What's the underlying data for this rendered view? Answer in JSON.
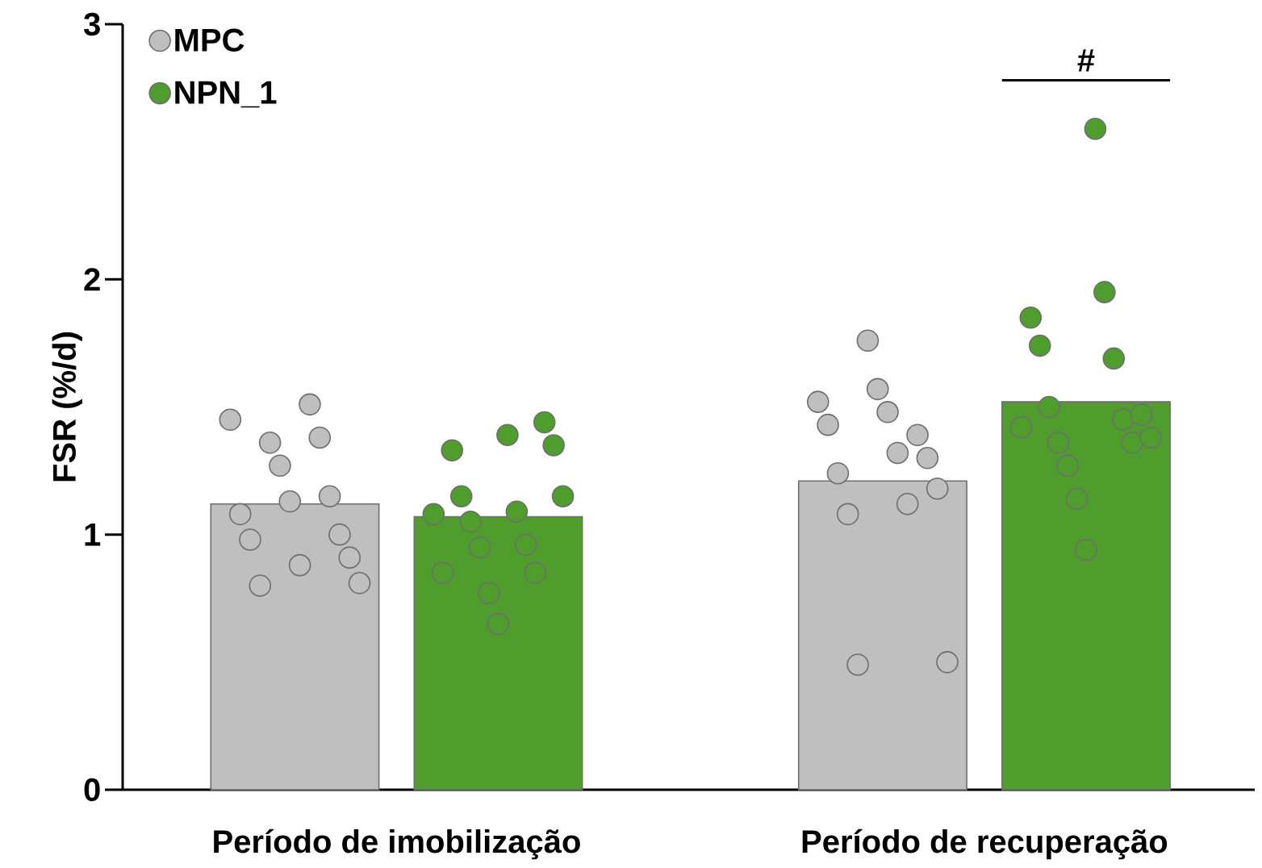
{
  "chart_data": {
    "type": "bar",
    "ylabel": "FSR (%/d)",
    "categories": [
      "Período de imobilização",
      "Período de recuperação"
    ],
    "ylim": [
      0,
      3
    ],
    "yticks": [
      0,
      1,
      2,
      3
    ],
    "legend": "top left",
    "grid": false,
    "annotations": [
      "#"
    ],
    "series": [
      {
        "name": "MPC",
        "color": "#bfbfbf",
        "values": [
          1.12,
          1.21
        ]
      },
      {
        "name": "NPN_1",
        "color": "#4f9e2d",
        "values": [
          1.07,
          1.52
        ]
      },
      {
        "type": "scatter",
        "color": "#bfbfbf",
        "marker": "circle",
        "x": [
          "Período de imobilização",
          "Período de imobilização",
          "Período de imobilização",
          "Período de imobilização",
          "Período de imobilização",
          "Período de imobilização",
          "Período de imobilização",
          "Período de imobilização",
          "Período de imobilização",
          "Período de imobilização",
          "Período de imobilização",
          "Período de imobilização",
          "Período de imobilização",
          "Período de imobilização",
          "Período de recuperação",
          "Período de recuperação",
          "Período de recuperação",
          "Período de recuperação",
          "Período de recuperação",
          "Período de recuperação",
          "Período de recuperação",
          "Período de recuperação",
          "Período de recuperação",
          "Período de recuperação",
          "Período de recuperação",
          "Período de recuperação",
          "Período de recuperação",
          "Período de recuperação"
        ],
        "values": [
          1.45,
          1.08,
          0.98,
          0.8,
          1.36,
          1.27,
          1.13,
          0.88,
          1.51,
          1.38,
          1.15,
          1.0,
          0.91,
          0.81,
          1.52,
          1.43,
          1.24,
          1.08,
          0.49,
          1.76,
          1.57,
          1.48,
          1.32,
          1.12,
          1.39,
          1.3,
          1.18,
          0.5
        ]
      },
      {
        "type": "scatter",
        "color": "#4f9e2d",
        "marker": "circle",
        "x": [
          "Período de imobilização",
          "Período de imobilização",
          "Período de imobilização",
          "Período de imobilização",
          "Período de imobilização",
          "Período de imobilização",
          "Período de imobilização",
          "Período de imobilização",
          "Período de imobilização",
          "Período de imobilização",
          "Período de imobilização",
          "Período de imobilização",
          "Período de imobilização",
          "Período de imobilização",
          "Período de imobilização",
          "Período de recuperação",
          "Período de recuperação",
          "Período de recuperação",
          "Período de recuperação",
          "Período de recuperação",
          "Período de recuperação",
          "Período de recuperação",
          "Período de recuperação",
          "Período de recuperação",
          "Período de recuperação",
          "Período de recuperação",
          "Período de recuperação",
          "Período de recuperação",
          "Período de recuperação",
          "Período de recuperação"
        ],
        "values": [
          1.08,
          0.85,
          1.33,
          1.15,
          1.05,
          0.95,
          0.77,
          0.65,
          1.39,
          1.09,
          0.96,
          0.85,
          1.44,
          1.35,
          1.15,
          1.42,
          1.85,
          1.74,
          1.5,
          1.36,
          1.27,
          1.14,
          0.94,
          2.59,
          1.95,
          1.69,
          1.45,
          1.36,
          1.47,
          1.38
        ]
      }
    ]
  }
}
